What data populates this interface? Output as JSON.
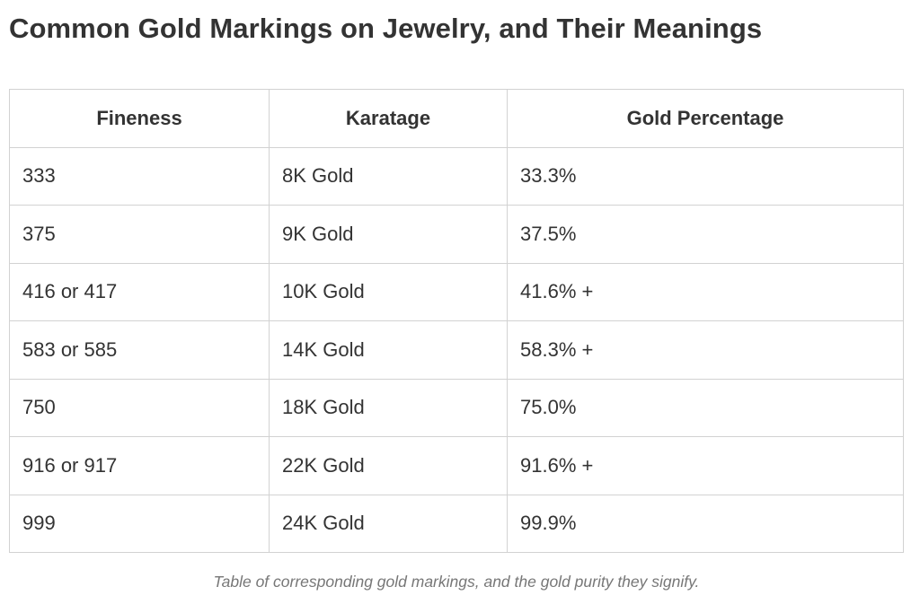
{
  "title": "Common Gold Markings on Jewelry, and Their Meanings",
  "table": {
    "headers": [
      "Fineness",
      "Karatage",
      "Gold Percentage"
    ],
    "rows": [
      [
        "333",
        "8K Gold",
        "33.3%"
      ],
      [
        "375",
        "9K Gold",
        "37.5%"
      ],
      [
        "416 or 417",
        "10K Gold",
        "41.6% +"
      ],
      [
        "583 or 585",
        "14K Gold",
        "58.3% +"
      ],
      [
        "750",
        "18K Gold",
        "75.0%"
      ],
      [
        "916 or 917",
        "22K Gold",
        "91.6% +"
      ],
      [
        "999",
        "24K Gold",
        "99.9%"
      ]
    ]
  },
  "caption": "Table of corresponding gold markings, and the gold purity they signify."
}
